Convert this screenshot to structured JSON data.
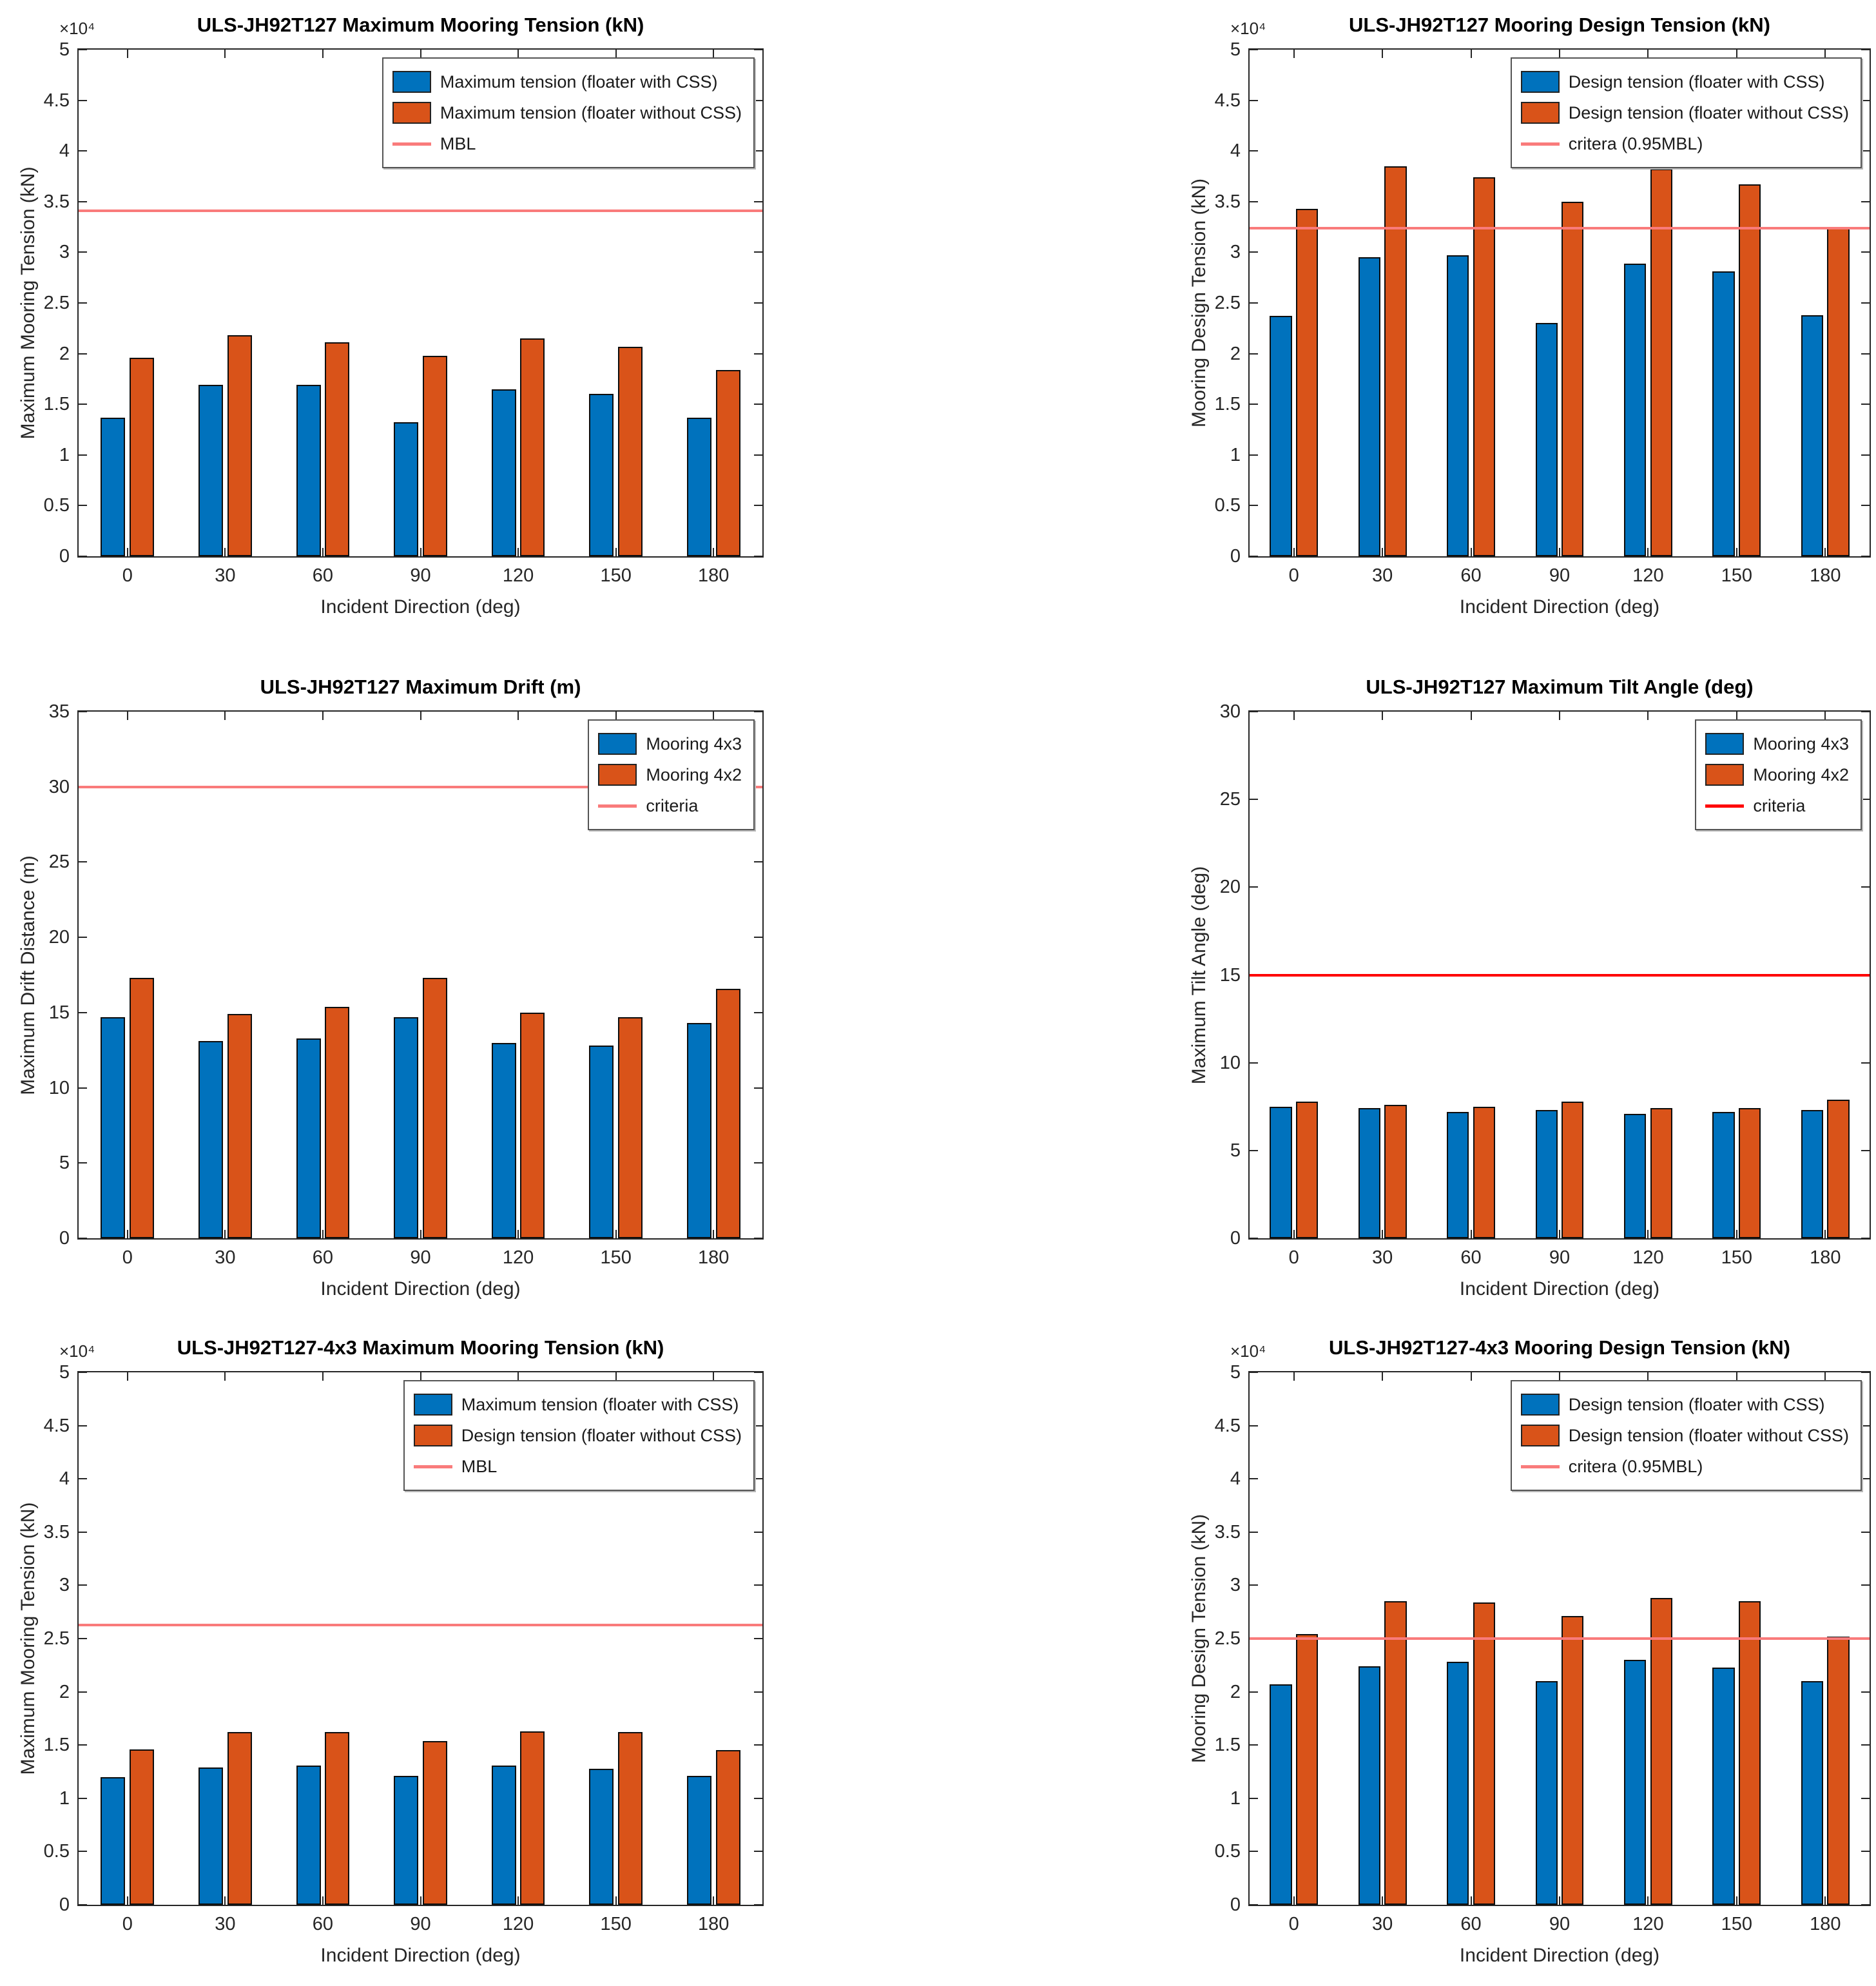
{
  "colors": {
    "blue": "#0072BD",
    "orange": "#D95319",
    "salmon": "#F97B7B",
    "red": "#FF0000",
    "axis": "#262626"
  },
  "chart_data": [
    {
      "type": "bar",
      "title": "ULS-JH92T127 Maximum Mooring Tension (kN)",
      "ylabel": "Maximum Mooring Tension (kN)",
      "xlabel": "Incident Direction (deg)",
      "y_multiplier": "×10⁴",
      "ylim": [
        0,
        5
      ],
      "ytick_step": 0.5,
      "legend_position": "top-right",
      "categories": [
        "0",
        "30",
        "60",
        "90",
        "120",
        "150",
        "180"
      ],
      "series": [
        {
          "name": "Maximum tension (floater with CSS)",
          "color_key": "blue",
          "values": [
            1.37,
            1.69,
            1.69,
            1.32,
            1.65,
            1.6,
            1.37
          ]
        },
        {
          "name": "Maximum tension (floater without CSS)",
          "color_key": "orange",
          "values": [
            1.96,
            2.18,
            2.11,
            1.98,
            2.15,
            2.07,
            1.84
          ]
        }
      ],
      "ref_line": {
        "label": "MBL",
        "value": 3.41,
        "color_key": "salmon"
      }
    },
    {
      "type": "bar",
      "title": "ULS-JH92T127 Mooring Design Tension (kN)",
      "ylabel": "Mooring Design Tension (kN)",
      "xlabel": "Incident Direction (deg)",
      "y_multiplier": "×10⁴",
      "ylim": [
        0,
        5
      ],
      "ytick_step": 0.5,
      "legend_position": "top-right",
      "categories": [
        "0",
        "30",
        "60",
        "90",
        "120",
        "150",
        "180"
      ],
      "series": [
        {
          "name": "Design tension (floater with CSS)",
          "color_key": "blue",
          "values": [
            2.37,
            2.95,
            2.97,
            2.3,
            2.89,
            2.81,
            2.38
          ]
        },
        {
          "name": "Design tension (floater without CSS)",
          "color_key": "orange",
          "values": [
            3.43,
            3.85,
            3.74,
            3.5,
            3.82,
            3.67,
            3.24
          ]
        }
      ],
      "ref_line": {
        "label": "critera (0.95MBL)",
        "value": 3.24,
        "color_key": "salmon"
      }
    },
    {
      "type": "bar",
      "title": "ULS-JH92T127 Maximum Drift (m)",
      "ylabel": "Maximum Drift Distance (m)",
      "xlabel": "Incident Direction (deg)",
      "y_multiplier": "",
      "ylim": [
        0,
        35
      ],
      "ytick_step": 5,
      "legend_position": "top-right",
      "categories": [
        "0",
        "30",
        "60",
        "90",
        "120",
        "150",
        "180"
      ],
      "series": [
        {
          "name": "Mooring 4x3",
          "color_key": "blue",
          "values": [
            14.7,
            13.1,
            13.3,
            14.7,
            13.0,
            12.8,
            14.3
          ]
        },
        {
          "name": "Mooring 4x2",
          "color_key": "orange",
          "values": [
            17.3,
            14.9,
            15.4,
            17.3,
            15.0,
            14.7,
            16.6
          ]
        }
      ],
      "ref_line": {
        "label": "criteria",
        "value": 30,
        "color_key": "salmon"
      }
    },
    {
      "type": "bar",
      "title": "ULS-JH92T127 Maximum Tilt Angle (deg)",
      "ylabel": "Maximum Tilt Angle (deg)",
      "xlabel": "Incident Direction (deg)",
      "y_multiplier": "",
      "ylim": [
        0,
        30
      ],
      "ytick_step": 5,
      "legend_position": "top-right",
      "categories": [
        "0",
        "30",
        "60",
        "90",
        "120",
        "150",
        "180"
      ],
      "series": [
        {
          "name": "Mooring 4x3",
          "color_key": "blue",
          "values": [
            7.5,
            7.4,
            7.2,
            7.3,
            7.1,
            7.2,
            7.3
          ]
        },
        {
          "name": "Mooring 4x2",
          "color_key": "orange",
          "values": [
            7.8,
            7.6,
            7.5,
            7.8,
            7.4,
            7.4,
            7.9
          ]
        }
      ],
      "ref_line": {
        "label": "criteria",
        "value": 15,
        "color_key": "red"
      }
    },
    {
      "type": "bar",
      "title": "ULS-JH92T127-4x3 Maximum Mooring Tension (kN)",
      "ylabel": "Maximum Mooring Tension (kN)",
      "xlabel": "Incident Direction (deg)",
      "y_multiplier": "×10⁴",
      "ylim": [
        0,
        5
      ],
      "ytick_step": 0.5,
      "legend_position": "top-right",
      "categories": [
        "0",
        "30",
        "60",
        "90",
        "120",
        "150",
        "180"
      ],
      "series": [
        {
          "name": "Maximum tension (floater with CSS)",
          "color_key": "blue",
          "values": [
            1.2,
            1.29,
            1.31,
            1.21,
            1.31,
            1.28,
            1.21
          ]
        },
        {
          "name": "Design tension (floater without CSS)",
          "color_key": "orange",
          "values": [
            1.46,
            1.62,
            1.62,
            1.54,
            1.63,
            1.62,
            1.45
          ]
        }
      ],
      "ref_line": {
        "label": "MBL",
        "value": 2.63,
        "color_key": "salmon"
      }
    },
    {
      "type": "bar",
      "title": "ULS-JH92T127-4x3 Mooring Design Tension (kN)",
      "ylabel": "Mooring Design Tension (kN)",
      "xlabel": "Incident Direction (deg)",
      "y_multiplier": "×10⁴",
      "ylim": [
        0,
        5
      ],
      "ytick_step": 0.5,
      "legend_position": "top-right",
      "categories": [
        "0",
        "30",
        "60",
        "90",
        "120",
        "150",
        "180"
      ],
      "series": [
        {
          "name": "Design tension (floater with CSS)",
          "color_key": "blue",
          "values": [
            2.07,
            2.24,
            2.28,
            2.1,
            2.3,
            2.23,
            2.1
          ]
        },
        {
          "name": "Design tension (floater without CSS)",
          "color_key": "orange",
          "values": [
            2.54,
            2.85,
            2.84,
            2.71,
            2.88,
            2.85,
            2.52
          ]
        }
      ],
      "ref_line": {
        "label": "critera (0.95MBL)",
        "value": 2.5,
        "color_key": "salmon"
      }
    }
  ]
}
